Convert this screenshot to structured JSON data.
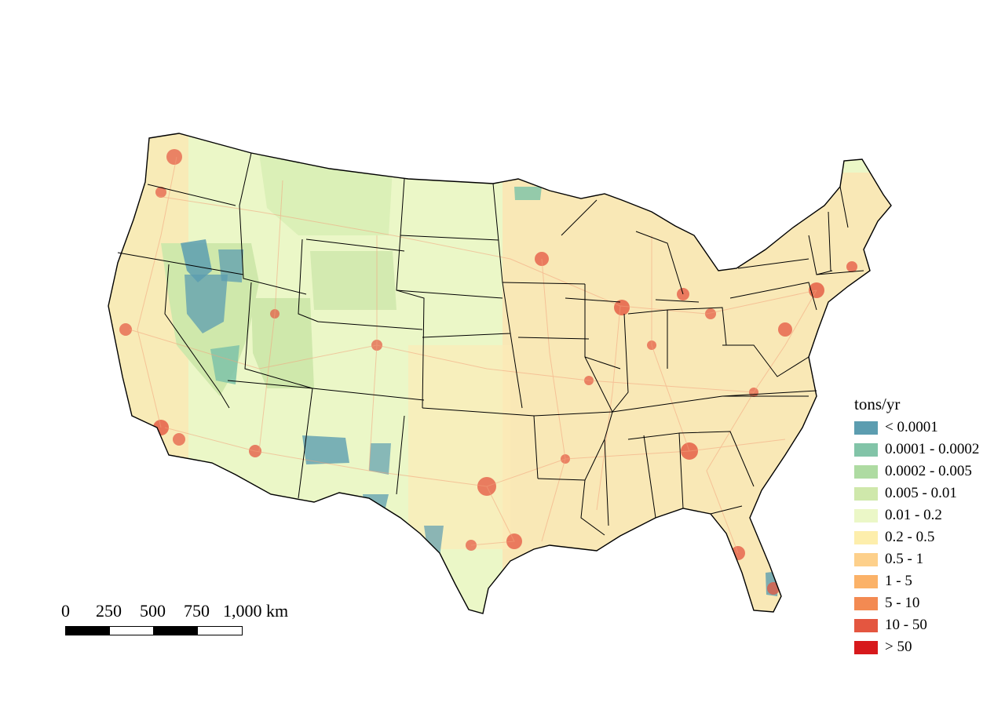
{
  "legend": {
    "title": "tons/yr",
    "classes": [
      {
        "label": "< 0.0001",
        "color": "#5c9db0"
      },
      {
        "label": "0.0001 - 0.0002",
        "color": "#82c4a8"
      },
      {
        "label": "0.0002 - 0.005",
        "color": "#aedba2"
      },
      {
        "label": "0.005 - 0.01",
        "color": "#cfe8ab"
      },
      {
        "label": "0.01 - 0.2",
        "color": "#ebf7c7"
      },
      {
        "label": "0.2 - 0.5",
        "color": "#fdeeac"
      },
      {
        "label": "0.5 - 1",
        "color": "#fdd08b"
      },
      {
        "label": "1 - 5",
        "color": "#fbb268"
      },
      {
        "label": "5 - 10",
        "color": "#f38a52"
      },
      {
        "label": "10 - 50",
        "color": "#e45640"
      },
      {
        "label": "> 50",
        "color": "#d7191c"
      }
    ]
  },
  "scalebar": {
    "labels": [
      "0",
      "250",
      "500",
      "750",
      "1,000 km"
    ]
  }
}
